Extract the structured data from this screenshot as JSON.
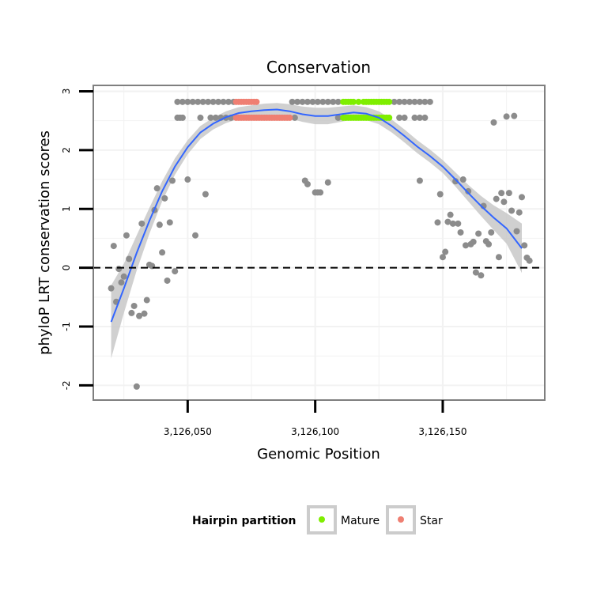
{
  "chart_data": {
    "type": "scatter",
    "title": "Conservation",
    "xlabel": "Genomic Position",
    "ylabel": "phyloP LRT conservation scores",
    "xlim": [
      3126013,
      3126190
    ],
    "ylim": [
      -2.25,
      3.1
    ],
    "x_ticks": [
      {
        "value": 3126050,
        "label": "3,126,050"
      },
      {
        "value": 3126100,
        "label": "3,126,100"
      },
      {
        "value": 3126150,
        "label": "3,126,150"
      }
    ],
    "y_ticks": [
      {
        "value": -2,
        "label": "-2"
      },
      {
        "value": -1,
        "label": "-1"
      },
      {
        "value": 0,
        "label": "0"
      },
      {
        "value": 1,
        "label": "1"
      },
      {
        "value": 2,
        "label": "2"
      },
      {
        "value": 3,
        "label": "3"
      }
    ],
    "reference_line": {
      "y": 0,
      "style": "dashed"
    },
    "colors": {
      "other": "#8c8c8c",
      "mature": "#7fee00",
      "star": "#ef7f72",
      "smooth": "#3366ff",
      "ribbon": "#c8c8c8",
      "panel_border": "#7f7f7f",
      "grid": "#f2f2f2"
    },
    "legend": {
      "title": "Hairpin partition",
      "position": "bottom",
      "entries": [
        {
          "key": "mature",
          "label": "Mature"
        },
        {
          "key": "star",
          "label": "Star"
        }
      ]
    },
    "other_points": [
      [
        3126020,
        -0.35
      ],
      [
        3126021,
        0.37
      ],
      [
        3126022,
        -0.58
      ],
      [
        3126023,
        -0.02
      ],
      [
        3126024,
        -0.25
      ],
      [
        3126025,
        -0.15
      ],
      [
        3126026,
        0.55
      ],
      [
        3126027,
        0.15
      ],
      [
        3126028,
        -0.77
      ],
      [
        3126029,
        -0.65
      ],
      [
        3126030,
        -2.02
      ],
      [
        3126031,
        -0.82
      ],
      [
        3126032,
        0.75
      ],
      [
        3126033,
        -0.78
      ],
      [
        3126034,
        -0.55
      ],
      [
        3126035,
        0.05
      ],
      [
        3126036,
        0.03
      ],
      [
        3126037,
        0.98
      ],
      [
        3126038,
        1.35
      ],
      [
        3126039,
        0.73
      ],
      [
        3126040,
        0.26
      ],
      [
        3126041,
        1.18
      ],
      [
        3126042,
        -0.22
      ],
      [
        3126043,
        0.77
      ],
      [
        3126044,
        1.48
      ],
      [
        3126045,
        -0.06
      ],
      [
        3126046,
        2.55
      ],
      [
        3126047,
        2.55
      ],
      [
        3126048,
        2.55
      ],
      [
        3126046,
        2.82
      ],
      [
        3126048,
        2.82
      ],
      [
        3126050,
        2.82
      ],
      [
        3126050,
        1.5
      ],
      [
        3126052,
        2.82
      ],
      [
        3126053,
        0.55
      ],
      [
        3126054,
        2.82
      ],
      [
        3126055,
        2.55
      ],
      [
        3126056,
        2.82
      ],
      [
        3126057,
        1.25
      ],
      [
        3126058,
        2.82
      ],
      [
        3126059,
        2.55
      ],
      [
        3126060,
        2.82
      ],
      [
        3126061,
        2.55
      ],
      [
        3126062,
        2.82
      ],
      [
        3126063,
        2.55
      ],
      [
        3126064,
        2.82
      ],
      [
        3126065,
        2.55
      ],
      [
        3126066,
        2.82
      ],
      [
        3126067,
        2.55
      ],
      [
        3126068,
        2.82
      ],
      [
        3126091,
        2.82
      ],
      [
        3126093,
        2.82
      ],
      [
        3126095,
        2.82
      ],
      [
        3126097,
        2.82
      ],
      [
        3126099,
        2.82
      ],
      [
        3126101,
        2.82
      ],
      [
        3126103,
        2.82
      ],
      [
        3126105,
        2.82
      ],
      [
        3126107,
        2.82
      ],
      [
        3126109,
        2.82
      ],
      [
        3126092,
        2.55
      ],
      [
        3126096,
        1.48
      ],
      [
        3126097,
        1.42
      ],
      [
        3126100,
        1.28
      ],
      [
        3126101,
        1.28
      ],
      [
        3126102,
        1.28
      ],
      [
        3126105,
        1.45
      ],
      [
        3126109,
        2.55
      ],
      [
        3126131,
        2.82
      ],
      [
        3126133,
        2.82
      ],
      [
        3126135,
        2.82
      ],
      [
        3126137,
        2.82
      ],
      [
        3126139,
        2.82
      ],
      [
        3126141,
        2.82
      ],
      [
        3126143,
        2.82
      ],
      [
        3126145,
        2.82
      ],
      [
        3126133,
        2.55
      ],
      [
        3126135,
        2.55
      ],
      [
        3126139,
        2.55
      ],
      [
        3126141,
        2.55
      ],
      [
        3126143,
        2.55
      ],
      [
        3126141,
        1.48
      ],
      [
        3126148,
        0.77
      ],
      [
        3126149,
        1.25
      ],
      [
        3126150,
        0.18
      ],
      [
        3126151,
        0.27
      ],
      [
        3126152,
        0.78
      ],
      [
        3126153,
        0.9
      ],
      [
        3126154,
        0.75
      ],
      [
        3126155,
        1.47
      ],
      [
        3126156,
        0.75
      ],
      [
        3126157,
        0.6
      ],
      [
        3126158,
        1.5
      ],
      [
        3126159,
        0.38
      ],
      [
        3126160,
        1.3
      ],
      [
        3126161,
        0.4
      ],
      [
        3126162,
        0.44
      ],
      [
        3126163,
        -0.08
      ],
      [
        3126164,
        0.58
      ],
      [
        3126165,
        -0.13
      ],
      [
        3126166,
        1.05
      ],
      [
        3126167,
        0.45
      ],
      [
        3126168,
        0.4
      ],
      [
        3126169,
        0.6
      ],
      [
        3126170,
        2.47
      ],
      [
        3126171,
        1.17
      ],
      [
        3126172,
        0.18
      ],
      [
        3126173,
        1.27
      ],
      [
        3126174,
        1.12
      ],
      [
        3126175,
        2.57
      ],
      [
        3126176,
        1.27
      ],
      [
        3126177,
        0.97
      ],
      [
        3126178,
        2.58
      ],
      [
        3126179,
        0.62
      ],
      [
        3126180,
        0.94
      ],
      [
        3126181,
        1.2
      ],
      [
        3126182,
        0.38
      ],
      [
        3126183,
        0.17
      ],
      [
        3126184,
        0.12
      ]
    ],
    "mature_points": [
      [
        3126111,
        2.82
      ],
      [
        3126112,
        2.82
      ],
      [
        3126113,
        2.82
      ],
      [
        3126114,
        2.82
      ],
      [
        3126115,
        2.82
      ],
      [
        3126117,
        2.82
      ],
      [
        3126119,
        2.82
      ],
      [
        3126120,
        2.82
      ],
      [
        3126121,
        2.82
      ],
      [
        3126122,
        2.82
      ],
      [
        3126123,
        2.82
      ],
      [
        3126124,
        2.82
      ],
      [
        3126125,
        2.82
      ],
      [
        3126126,
        2.82
      ],
      [
        3126127,
        2.82
      ],
      [
        3126128,
        2.82
      ],
      [
        3126129,
        2.82
      ],
      [
        3126111,
        2.55
      ],
      [
        3126112,
        2.55
      ],
      [
        3126113,
        2.55
      ],
      [
        3126114,
        2.55
      ],
      [
        3126115,
        2.55
      ],
      [
        3126116,
        2.55
      ],
      [
        3126117,
        2.55
      ],
      [
        3126118,
        2.55
      ],
      [
        3126119,
        2.55
      ],
      [
        3126120,
        2.55
      ],
      [
        3126121,
        2.55
      ],
      [
        3126122,
        2.55
      ],
      [
        3126123,
        2.55
      ],
      [
        3126124,
        2.55
      ],
      [
        3126125,
        2.55
      ],
      [
        3126126,
        2.55
      ],
      [
        3126127,
        2.55
      ],
      [
        3126128,
        2.55
      ],
      [
        3126129,
        2.55
      ]
    ],
    "star_points": [
      [
        3126069,
        2.82
      ],
      [
        3126070,
        2.82
      ],
      [
        3126071,
        2.82
      ],
      [
        3126072,
        2.82
      ],
      [
        3126073,
        2.82
      ],
      [
        3126074,
        2.82
      ],
      [
        3126075,
        2.82
      ],
      [
        3126076,
        2.82
      ],
      [
        3126077,
        2.82
      ],
      [
        3126069,
        2.55
      ],
      [
        3126070,
        2.55
      ],
      [
        3126071,
        2.55
      ],
      [
        3126072,
        2.55
      ],
      [
        3126073,
        2.55
      ],
      [
        3126074,
        2.55
      ],
      [
        3126075,
        2.55
      ],
      [
        3126076,
        2.55
      ],
      [
        3126077,
        2.55
      ],
      [
        3126078,
        2.55
      ],
      [
        3126079,
        2.55
      ],
      [
        3126080,
        2.55
      ],
      [
        3126081,
        2.55
      ],
      [
        3126082,
        2.55
      ],
      [
        3126083,
        2.55
      ],
      [
        3126084,
        2.55
      ],
      [
        3126085,
        2.55
      ],
      [
        3126086,
        2.55
      ],
      [
        3126087,
        2.55
      ],
      [
        3126088,
        2.55
      ],
      [
        3126089,
        2.55
      ],
      [
        3126090,
        2.55
      ]
    ],
    "smooth_curve": [
      [
        3126020,
        -0.92
      ],
      [
        3126025,
        -0.35
      ],
      [
        3126030,
        0.25
      ],
      [
        3126035,
        0.8
      ],
      [
        3126040,
        1.3
      ],
      [
        3126045,
        1.72
      ],
      [
        3126050,
        2.05
      ],
      [
        3126055,
        2.3
      ],
      [
        3126060,
        2.45
      ],
      [
        3126065,
        2.56
      ],
      [
        3126070,
        2.63
      ],
      [
        3126075,
        2.66
      ],
      [
        3126080,
        2.68
      ],
      [
        3126085,
        2.69
      ],
      [
        3126090,
        2.66
      ],
      [
        3126095,
        2.61
      ],
      [
        3126100,
        2.58
      ],
      [
        3126105,
        2.58
      ],
      [
        3126110,
        2.61
      ],
      [
        3126115,
        2.64
      ],
      [
        3126120,
        2.62
      ],
      [
        3126125,
        2.55
      ],
      [
        3126130,
        2.41
      ],
      [
        3126135,
        2.24
      ],
      [
        3126140,
        2.06
      ],
      [
        3126145,
        1.9
      ],
      [
        3126150,
        1.72
      ],
      [
        3126155,
        1.5
      ],
      [
        3126160,
        1.27
      ],
      [
        3126165,
        1.05
      ],
      [
        3126170,
        0.85
      ],
      [
        3126175,
        0.67
      ],
      [
        3126181,
        0.33
      ]
    ],
    "ribbon_halfwidth": [
      0.62,
      0.42,
      0.3,
      0.22,
      0.17,
      0.14,
      0.12,
      0.11,
      0.1,
      0.1,
      0.1,
      0.1,
      0.11,
      0.11,
      0.12,
      0.13,
      0.14,
      0.14,
      0.13,
      0.12,
      0.11,
      0.11,
      0.11,
      0.11,
      0.11,
      0.11,
      0.11,
      0.12,
      0.14,
      0.17,
      0.21,
      0.26,
      0.42
    ]
  }
}
